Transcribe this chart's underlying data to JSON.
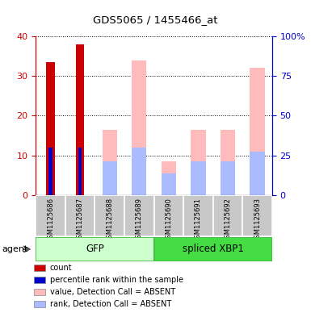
{
  "title": "GDS5065 / 1455466_at",
  "samples": [
    "GSM1125686",
    "GSM1125687",
    "GSM1125688",
    "GSM1125689",
    "GSM1125690",
    "GSM1125691",
    "GSM1125692",
    "GSM1125693"
  ],
  "groups": [
    {
      "name": "GFP",
      "color": "#ccffcc",
      "border": "#44bb44",
      "samples": [
        0,
        1,
        2,
        3
      ]
    },
    {
      "name": "spliced XBP1",
      "color": "#44dd44",
      "border": "#44bb44",
      "samples": [
        4,
        5,
        6,
        7
      ]
    }
  ],
  "count_values": [
    33.5,
    38.0,
    0,
    0,
    0,
    0,
    0,
    0
  ],
  "count_color": "#cc0000",
  "percentile_values": [
    12.0,
    12.0,
    0,
    0,
    0,
    0,
    0,
    0
  ],
  "percentile_color": "#0000cc",
  "absent_value_values": [
    0,
    0,
    16.5,
    34.0,
    8.5,
    16.5,
    16.5,
    32.0
  ],
  "absent_value_color": "#ffbbbb",
  "absent_rank_values": [
    0,
    0,
    8.5,
    12.0,
    5.5,
    8.5,
    8.5,
    11.0
  ],
  "absent_rank_color": "#aabbff",
  "ylim_left": [
    0,
    40
  ],
  "ylim_right": [
    0,
    100
  ],
  "yticks_left": [
    0,
    10,
    20,
    30,
    40
  ],
  "ytick_labels_left": [
    "0",
    "10",
    "20",
    "30",
    "40"
  ],
  "yticks_right": [
    0,
    25,
    50,
    75,
    100
  ],
  "ytick_labels_right": [
    "0",
    "25",
    "50",
    "75",
    "100%"
  ],
  "bg_color": "#ffffff",
  "plot_bg": "#ffffff",
  "left_axis_color": "#cc0000",
  "right_axis_color": "#0000cc",
  "legend_items": [
    {
      "color": "#cc0000",
      "label": "count"
    },
    {
      "color": "#0000cc",
      "label": "percentile rank within the sample"
    },
    {
      "color": "#ffbbbb",
      "label": "value, Detection Call = ABSENT"
    },
    {
      "color": "#aabbff",
      "label": "rank, Detection Call = ABSENT"
    }
  ]
}
